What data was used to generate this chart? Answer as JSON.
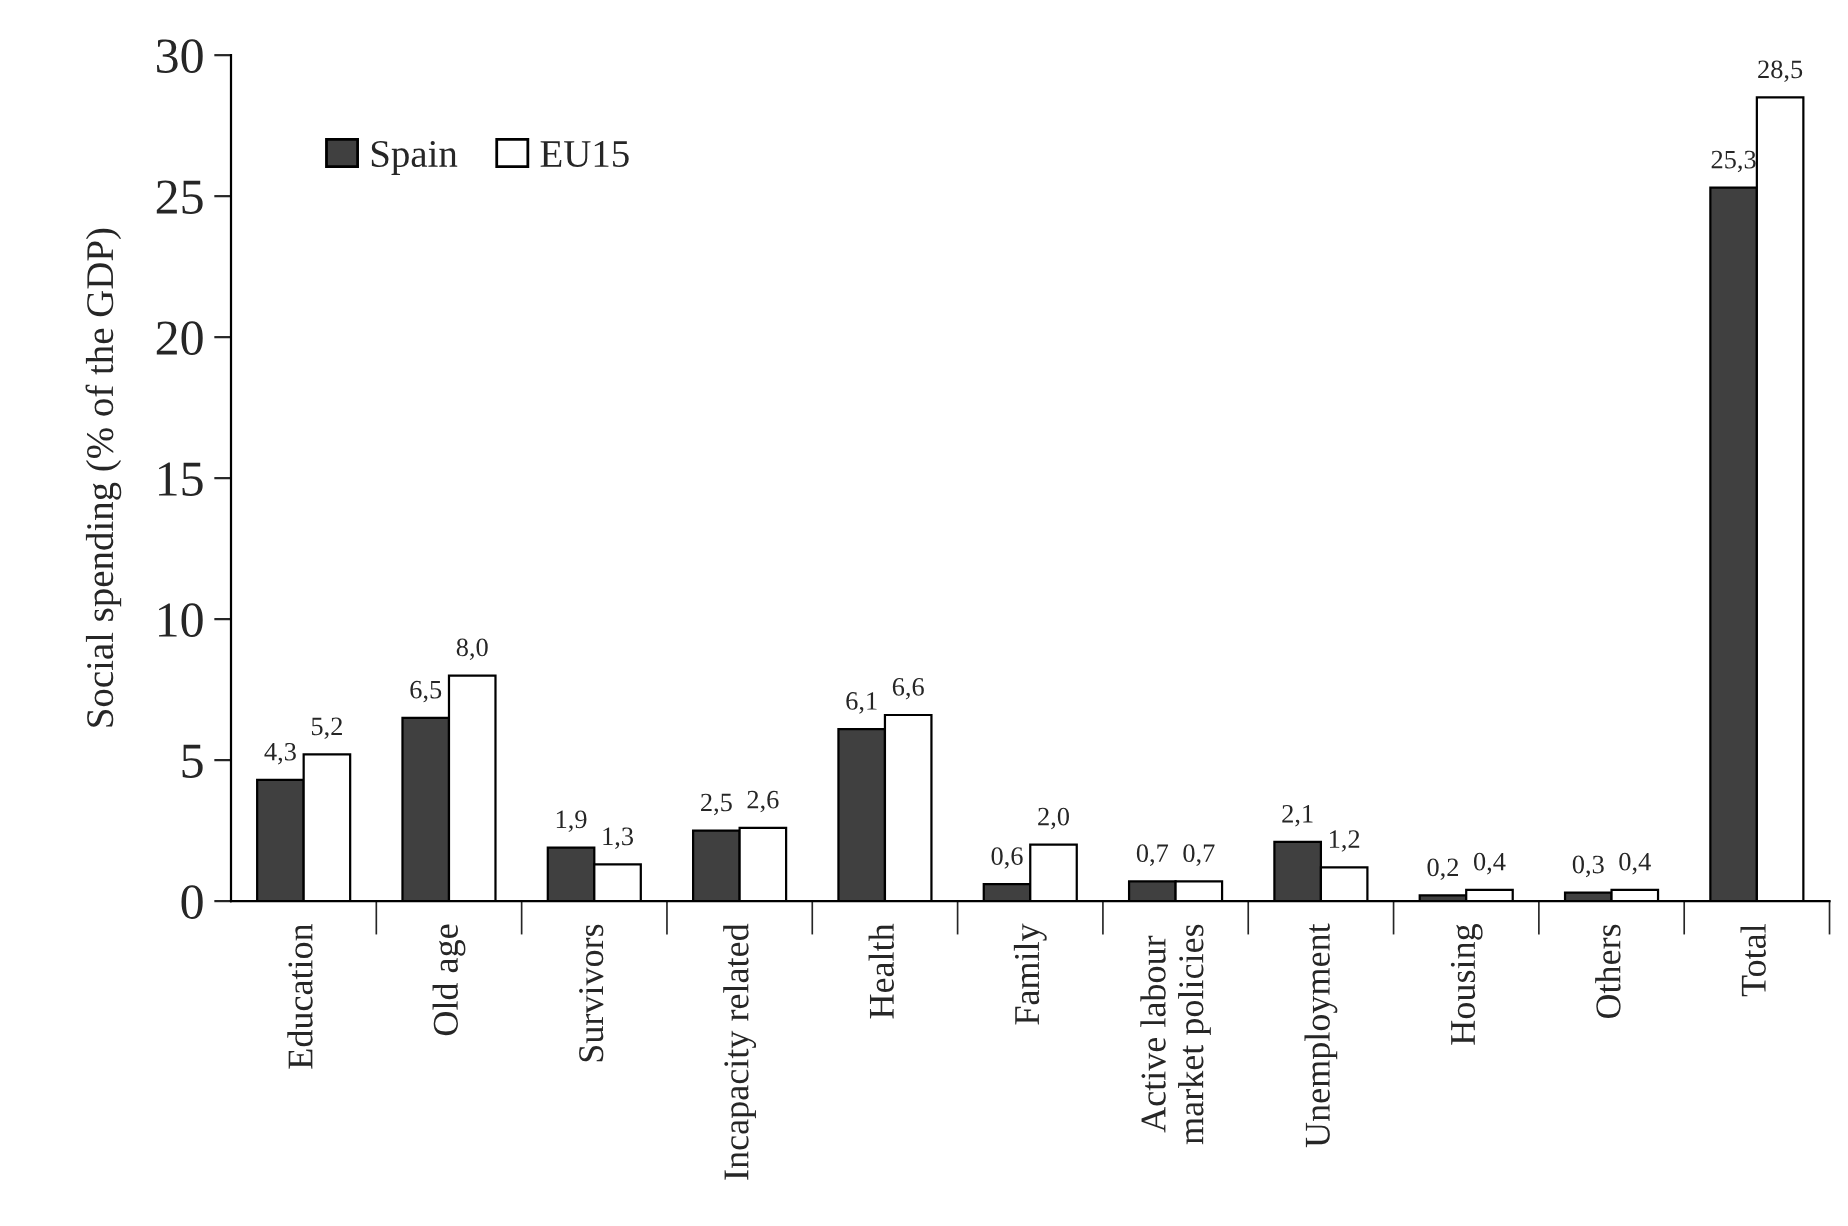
{
  "chart_data": {
    "type": "bar",
    "ylabel": "Social spending (% of the GDP)",
    "categories": [
      "Education",
      "Old age",
      "Survivors",
      "Incapacity related",
      "Health",
      "Family",
      "Active labour\nmarket policies",
      "Unemployment",
      "Housing",
      "Others",
      "Total"
    ],
    "series": [
      {
        "name": "Spain",
        "color": "#404040",
        "values": [
          4.3,
          6.5,
          1.9,
          2.5,
          6.1,
          0.6,
          0.7,
          2.1,
          0.2,
          0.3,
          25.3
        ],
        "value_labels": [
          "4,3",
          "6,5",
          "1,9",
          "2,5",
          "6,1",
          "0,6",
          "0,7",
          "2,1",
          "0,2",
          "0,3",
          "25,3"
        ]
      },
      {
        "name": "EU15",
        "color": "#ffffff",
        "values": [
          5.2,
          8.0,
          1.3,
          2.6,
          6.6,
          2.0,
          0.7,
          1.2,
          0.4,
          0.4,
          28.5
        ],
        "value_labels": [
          "5,2",
          "8,0",
          "1,3",
          "2,6",
          "6,6",
          "2,0",
          "0,7",
          "1,2",
          "0,4",
          "0,4",
          "28,5"
        ]
      }
    ],
    "ylim": [
      0,
      30
    ],
    "yticks": [
      0,
      5,
      10,
      15,
      20,
      25,
      30
    ],
    "grid": false,
    "legend": "top left"
  }
}
